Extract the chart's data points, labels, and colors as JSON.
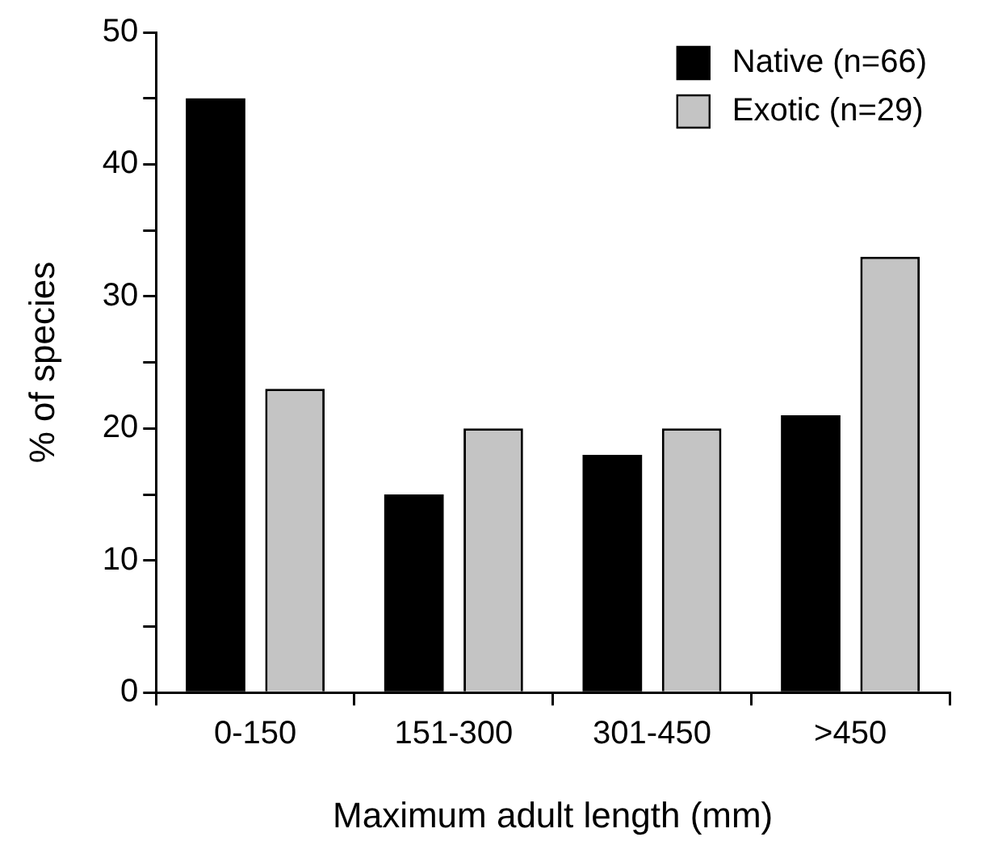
{
  "chart_data": {
    "type": "bar",
    "xlabel": "Maximum adult length (mm)",
    "ylabel": "% of species",
    "categories": [
      "0-150",
      "151-300",
      "301-450",
      ">450"
    ],
    "series": [
      {
        "name": "Native (n=66)",
        "color": "#000000",
        "values": [
          45,
          15,
          18,
          21
        ]
      },
      {
        "name": "Exotic (n=29)",
        "color": "#c4c4c4",
        "values": [
          23,
          20,
          20,
          33
        ]
      }
    ],
    "ylim": [
      0,
      50
    ],
    "yticks": [
      0,
      {
        "value": 5,
        "label": null
      },
      10,
      {
        "value": 15,
        "label": null
      },
      20,
      {
        "value": 25,
        "label": null
      },
      30,
      {
        "value": 35,
        "label": null
      },
      40,
      {
        "value": 45,
        "label": null
      },
      50
    ],
    "grid": false,
    "legend": "top right"
  }
}
